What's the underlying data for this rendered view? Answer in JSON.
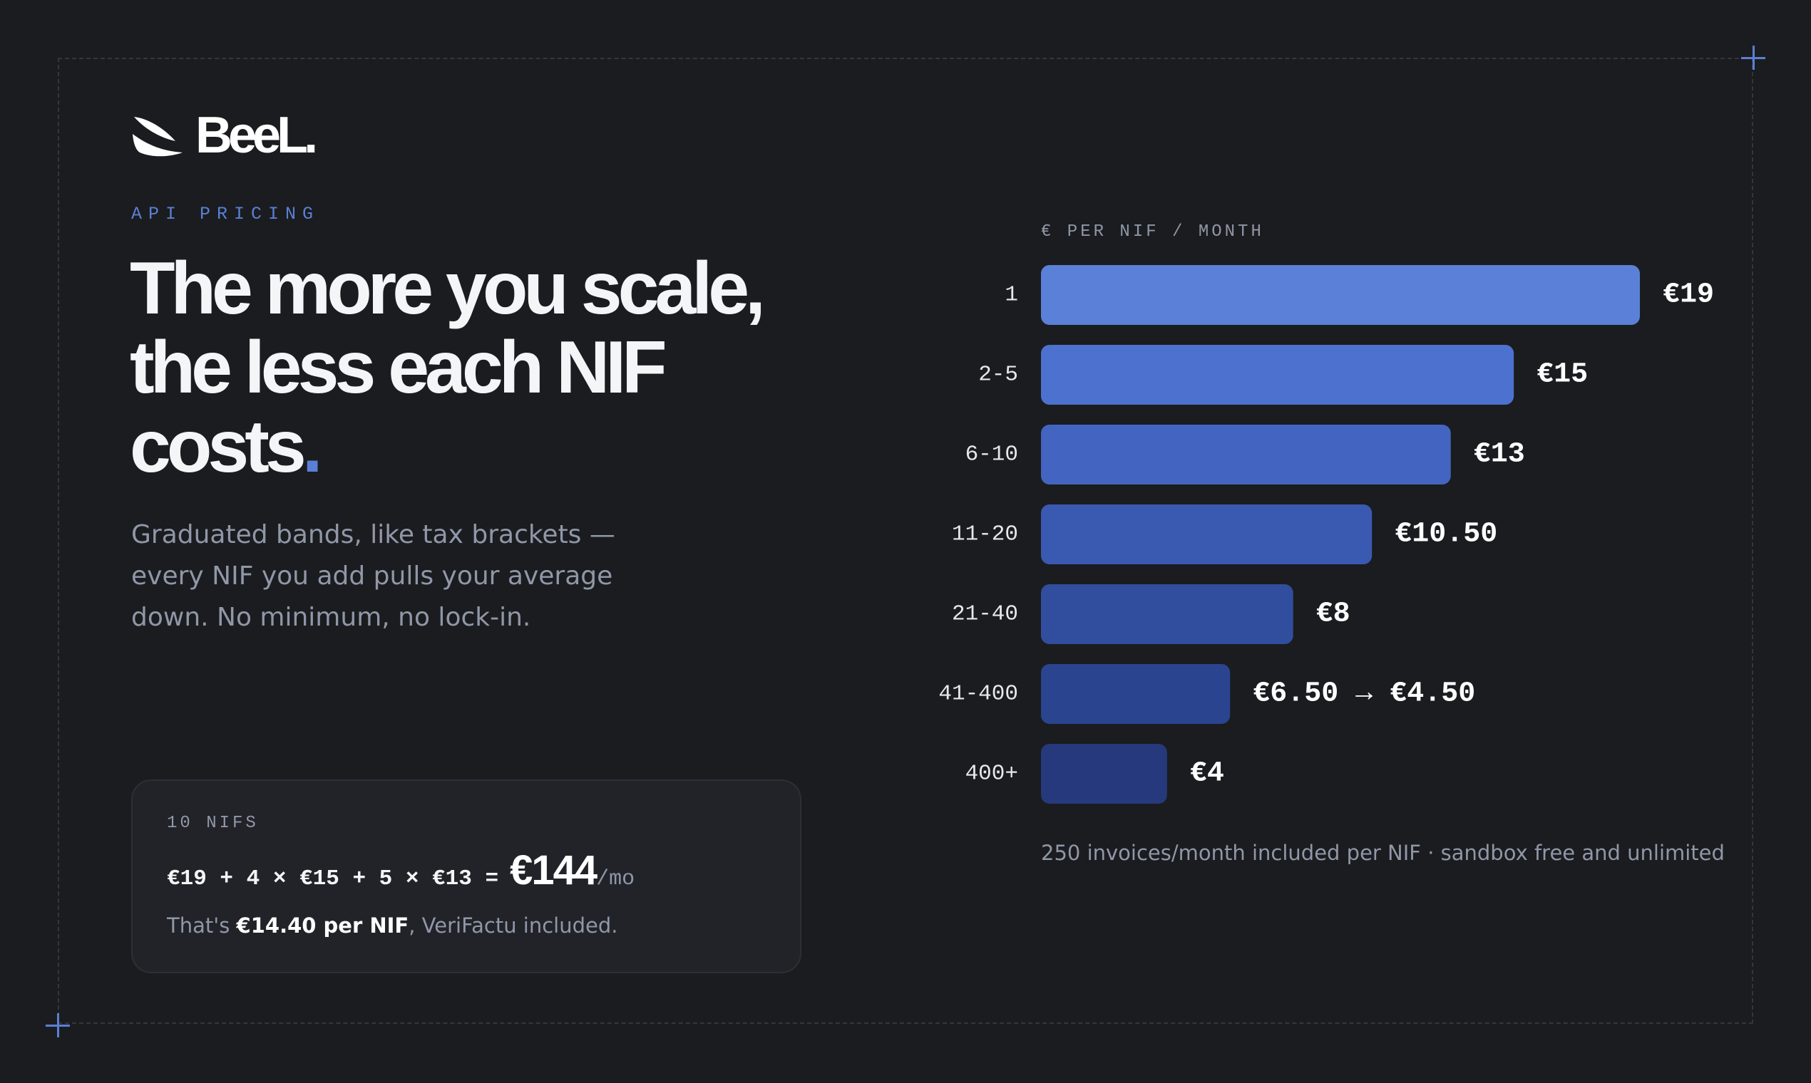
{
  "brand": {
    "name": "BeeL."
  },
  "eyebrow": "API PRICING",
  "headline": {
    "line1": "The more you scale,",
    "line2": "the less each NIF",
    "line3": "costs",
    "accent": "."
  },
  "subtitle": "Graduated bands, like tax brackets — every NIF you add pulls your average down. No minimum, no lock-in.",
  "example": {
    "label": "10 NIFS",
    "expression": "€19 + 4 × €15 + 5 × €13 =",
    "total": "€144",
    "unit": "/mo",
    "note_prefix": "That's ",
    "note_strong": "€14.40 per NIF",
    "note_suffix": ", VeriFactu included."
  },
  "colors": {
    "background": "#1b1c1f",
    "accent": "#5b7fd6",
    "muted_text": "#8f97a8"
  },
  "chart_data": {
    "type": "bar",
    "orientation": "horizontal",
    "title": "€ PER NIF / MONTH",
    "categories": [
      "1",
      "2-5",
      "6-10",
      "11-20",
      "21-40",
      "41-400",
      "400+"
    ],
    "values": [
      19,
      15,
      13,
      10.5,
      8,
      6,
      4
    ],
    "value_labels": [
      "€19",
      "€15",
      "€13",
      "€10.50",
      "€8",
      "€6.50 → €4.50",
      "€4"
    ],
    "bar_colors": [
      "#5b80d7",
      "#4c71cf",
      "#4365c1",
      "#3a59b1",
      "#314e9e",
      "#2a448f",
      "#25397c"
    ],
    "xlim": [
      0,
      19
    ],
    "grid": false,
    "footnote": "250 invoices/month included per NIF · sandbox free and unlimited"
  }
}
